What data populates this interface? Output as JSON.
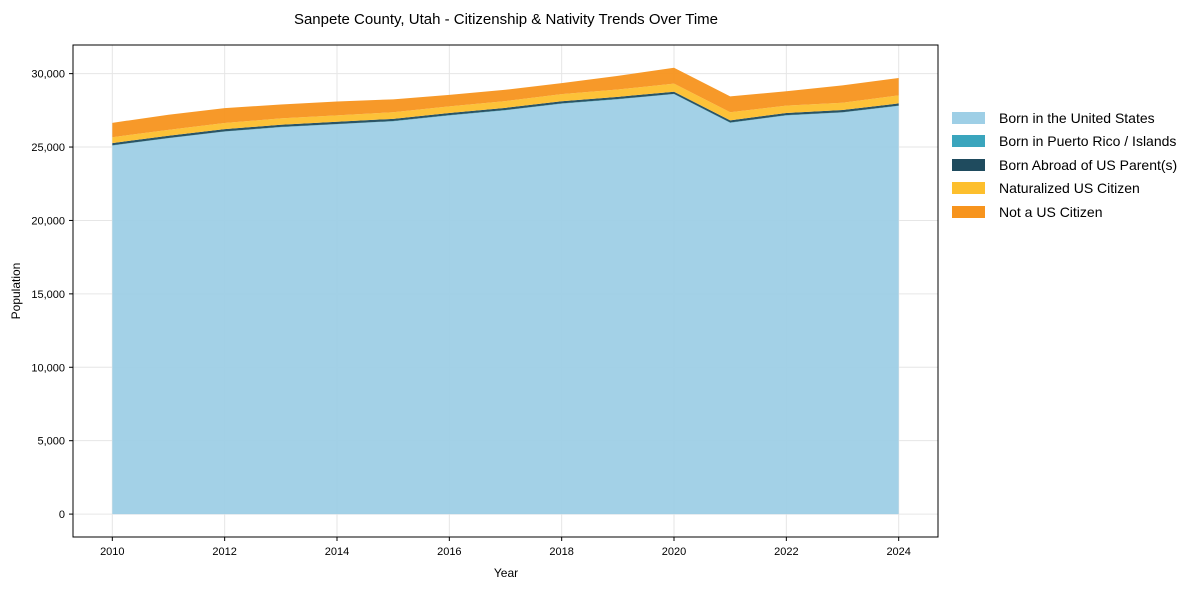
{
  "chart_data": {
    "type": "area",
    "stacked": true,
    "title": "Sanpete County, Utah - Citizenship & Nativity Trends Over Time",
    "xlabel": "Year",
    "ylabel": "Population",
    "xlim": [
      2009.3,
      2024.7
    ],
    "ylim": [
      -1560,
      31950
    ],
    "grid": true,
    "legend_placement": "right",
    "x": [
      2010,
      2011,
      2012,
      2013,
      2014,
      2015,
      2016,
      2017,
      2018,
      2019,
      2020,
      2021,
      2022,
      2023,
      2024
    ],
    "xticks": [
      2010,
      2012,
      2014,
      2016,
      2018,
      2020,
      2022,
      2024
    ],
    "xtick_labels": [
      "2010",
      "2012",
      "2014",
      "2016",
      "2018",
      "2020",
      "2022",
      "2024"
    ],
    "yticks": [
      0,
      5000,
      10000,
      15000,
      20000,
      25000,
      30000
    ],
    "ytick_labels": [
      "0",
      "5,000",
      "10,000",
      "15,000",
      "20,000",
      "25,000",
      "30,000"
    ],
    "series": [
      {
        "name": "Born in the United States",
        "color": "#9ecfe6",
        "values": [
          25100,
          25600,
          26050,
          26350,
          26550,
          26750,
          27150,
          27500,
          27950,
          28250,
          28600,
          26650,
          27150,
          27350,
          27800
        ]
      },
      {
        "name": "Born in Puerto Rico / Islands",
        "color": "#3aa5bd",
        "values": [
          20,
          20,
          20,
          20,
          20,
          20,
          20,
          20,
          20,
          20,
          20,
          20,
          20,
          20,
          20
        ]
      },
      {
        "name": "Born Abroad of US Parent(s)",
        "color": "#1f4b5e",
        "values": [
          150,
          150,
          150,
          150,
          150,
          150,
          150,
          150,
          150,
          150,
          150,
          150,
          150,
          150,
          150
        ]
      },
      {
        "name": "Naturalized US Citizen",
        "color": "#fdbf2d",
        "values": [
          400,
          400,
          420,
          430,
          440,
          450,
          450,
          460,
          480,
          500,
          550,
          550,
          500,
          500,
          550
        ]
      },
      {
        "name": "Not a US Citizen",
        "color": "#f7941d",
        "values": [
          980,
          1030,
          1010,
          950,
          940,
          880,
          780,
          770,
          750,
          930,
          1080,
          1080,
          980,
          1180,
          1180
        ]
      }
    ]
  }
}
